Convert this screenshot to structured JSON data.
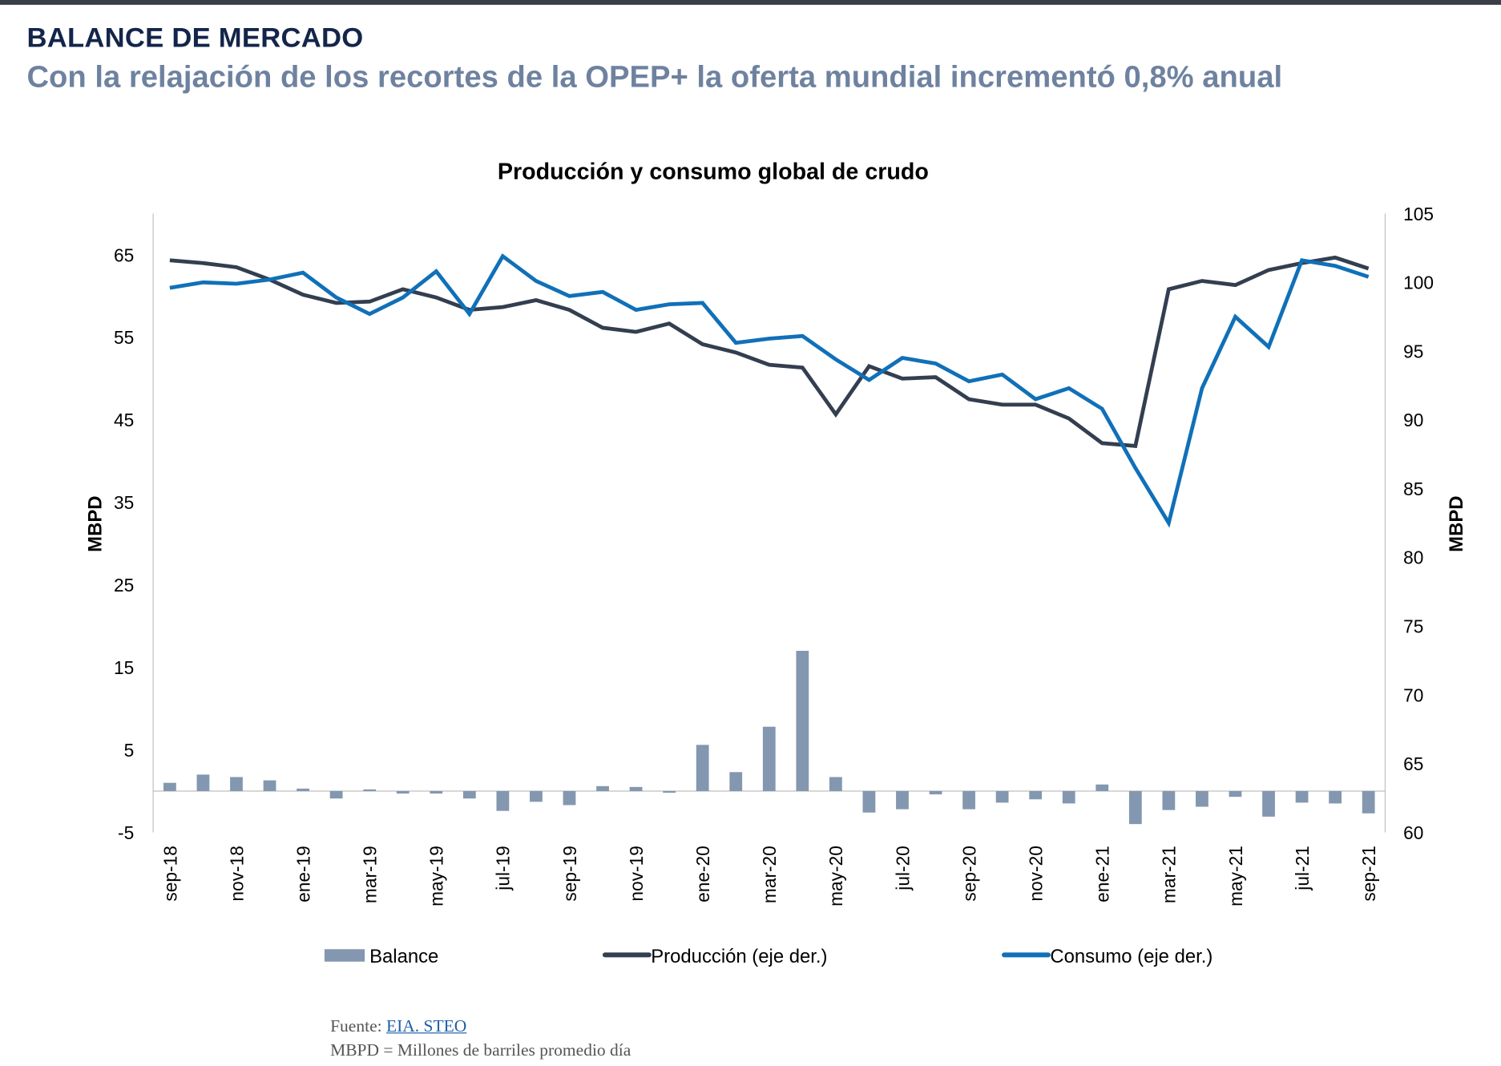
{
  "header": {
    "title": "BALANCE DE MERCADO",
    "subtitle": "Con la relajación de los recortes de la OPEP+ la oferta mundial incrementó 0,8% anual"
  },
  "footer": {
    "source_label": "Fuente:",
    "source_link": "EIA. STEO",
    "note": "MBPD = Millones de barriles promedio día"
  },
  "colors": {
    "balance": "#8497b0",
    "produccion": "#333f50",
    "consumo": "#1070b8",
    "title": "#13254a",
    "subtitle": "#6e82a0"
  },
  "chart_data": {
    "type": "bar+line",
    "title": "Producción y consumo global de crudo",
    "ylabel_left": "MBPD",
    "ylabel_right": "MBPD",
    "ylim_left": [
      -5,
      70
    ],
    "ylim_right": [
      60,
      105
    ],
    "yticks_left": [
      65,
      55,
      45,
      35,
      25,
      15,
      5,
      -5
    ],
    "yticks_right": [
      105,
      100,
      95,
      90,
      85,
      80,
      75,
      70,
      65,
      60
    ],
    "grid": false,
    "legend_position": "bottom",
    "categories": [
      "sep-18",
      "oct-18",
      "nov-18",
      "dic-18",
      "ene-19",
      "feb-19",
      "mar-19",
      "abr-19",
      "may-19",
      "jun-19",
      "jul-19",
      "ago-19",
      "sep-19",
      "oct-19",
      "nov-19",
      "dic-19",
      "ene-20",
      "feb-20",
      "mar-20",
      "abr-20",
      "may-20",
      "jun-20",
      "jul-20",
      "ago-20",
      "sep-20",
      "oct-20",
      "nov-20",
      "dic-20",
      "ene-21",
      "feb-21",
      "mar-21",
      "abr-21",
      "may-21",
      "jun-21",
      "jul-21",
      "ago-21",
      "sep-21"
    ],
    "xtick_labels": [
      "sep-18",
      "nov-18",
      "ene-19",
      "mar-19",
      "may-19",
      "jul-19",
      "sep-19",
      "nov-19",
      "ene-20",
      "mar-20",
      "may-20",
      "jul-20",
      "sep-20",
      "nov-20",
      "ene-21",
      "mar-21",
      "may-21",
      "jul-21",
      "sep-21"
    ],
    "series": [
      {
        "name": "Balance",
        "type": "bar",
        "axis": "left",
        "values": [
          1.0,
          2.0,
          1.7,
          1.3,
          0.3,
          -0.9,
          0.2,
          -0.3,
          -0.3,
          -0.9,
          -2.4,
          -1.3,
          -1.7,
          0.6,
          0.5,
          -0.2,
          5.6,
          2.3,
          7.8,
          17.0,
          1.7,
          -2.6,
          -2.2,
          -0.4,
          -2.2,
          -1.4,
          -1.0,
          -1.5,
          0.8,
          -4.0,
          -2.3,
          -1.9,
          -0.7,
          -3.1,
          -1.4,
          -1.5,
          -2.7
        ]
      },
      {
        "name": "Producción (eje der.)",
        "type": "line",
        "axis": "right",
        "values": [
          101.6,
          101.4,
          101.1,
          100.2,
          99.1,
          98.5,
          98.6,
          99.5,
          98.9,
          98.0,
          98.2,
          98.7,
          98.0,
          96.7,
          96.4,
          97.0,
          95.5,
          94.9,
          94.0,
          93.8,
          90.4,
          93.9,
          93.0,
          93.1,
          91.5,
          91.1,
          91.1,
          90.1,
          88.3,
          88.1,
          99.5,
          100.1,
          99.8,
          100.9,
          101.4,
          101.8,
          101.0
        ]
      },
      {
        "name": "Consumo (eje der.)",
        "type": "line",
        "axis": "right",
        "values": [
          99.6,
          100.0,
          99.9,
          100.2,
          100.7,
          98.9,
          97.7,
          98.9,
          100.8,
          97.7,
          101.9,
          100.1,
          99.0,
          99.3,
          98.0,
          98.4,
          98.5,
          95.6,
          95.9,
          96.1,
          94.4,
          92.9,
          94.5,
          94.1,
          92.8,
          93.3,
          91.5,
          92.3,
          90.8,
          86.5,
          82.5,
          92.3,
          97.5,
          95.3,
          101.6,
          101.2,
          100.4
        ]
      }
    ]
  }
}
